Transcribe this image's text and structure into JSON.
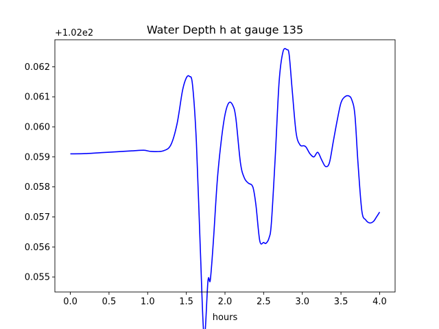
{
  "chart_data": {
    "type": "line",
    "title": "Water Depth h at gauge 135",
    "xlabel": "hours",
    "ylabel": "",
    "offset_label": "+1.02e2",
    "xlim": [
      -0.2,
      4.2
    ],
    "ylim": [
      0.0545,
      0.0629
    ],
    "xticks": [
      0.0,
      0.5,
      1.0,
      1.5,
      2.0,
      2.5,
      3.0,
      3.5,
      4.0
    ],
    "xtick_labels": [
      "0.0",
      "0.5",
      "1.0",
      "1.5",
      "2.0",
      "2.5",
      "3.0",
      "3.5",
      "4.0"
    ],
    "yticks": [
      0.055,
      0.056,
      0.057,
      0.058,
      0.059,
      0.06,
      0.061,
      0.062
    ],
    "ytick_labels": [
      "0.055",
      "0.056",
      "0.057",
      "0.058",
      "0.059",
      "0.060",
      "0.061",
      "0.062"
    ],
    "grid": false,
    "line_color": "#0000ff",
    "series": [
      {
        "x": [
          0.0,
          0.2,
          0.4,
          0.6,
          0.8,
          0.95,
          1.05,
          1.2,
          1.3,
          1.38,
          1.45,
          1.5,
          1.54,
          1.58,
          1.63,
          1.68,
          1.73,
          1.78,
          1.81,
          1.85,
          1.9,
          1.95,
          2.0,
          2.05,
          2.1,
          2.14,
          2.2,
          2.25,
          2.3,
          2.36,
          2.4,
          2.45,
          2.5,
          2.53,
          2.57,
          2.6,
          2.65,
          2.7,
          2.75,
          2.8,
          2.83,
          2.87,
          2.92,
          2.97,
          3.02,
          3.05,
          3.1,
          3.15,
          3.2,
          3.25,
          3.3,
          3.35,
          3.4,
          3.45,
          3.5,
          3.55,
          3.6,
          3.64,
          3.68,
          3.72,
          3.77,
          3.82,
          3.87,
          3.92,
          3.96,
          4.0
        ],
        "y": [
          0.0591,
          0.05911,
          0.05914,
          0.05917,
          0.0592,
          0.05922,
          0.05918,
          0.0592,
          0.0594,
          0.0601,
          0.0612,
          0.06163,
          0.06168,
          0.0614,
          0.0595,
          0.056,
          0.053,
          0.05487,
          0.0549,
          0.0562,
          0.0582,
          0.0595,
          0.0604,
          0.0608,
          0.06072,
          0.0603,
          0.0588,
          0.0583,
          0.05813,
          0.058,
          0.0574,
          0.0562,
          0.05615,
          0.05612,
          0.0563,
          0.0568,
          0.059,
          0.0615,
          0.0625,
          0.06257,
          0.0624,
          0.0612,
          0.0598,
          0.0594,
          0.05937,
          0.05932,
          0.0591,
          0.059,
          0.05915,
          0.0589,
          0.05868,
          0.0588,
          0.0595,
          0.0602,
          0.0608,
          0.061,
          0.06103,
          0.0609,
          0.0604,
          0.0588,
          0.0572,
          0.0569,
          0.0568,
          0.05685,
          0.057,
          0.05716
        ]
      }
    ]
  }
}
